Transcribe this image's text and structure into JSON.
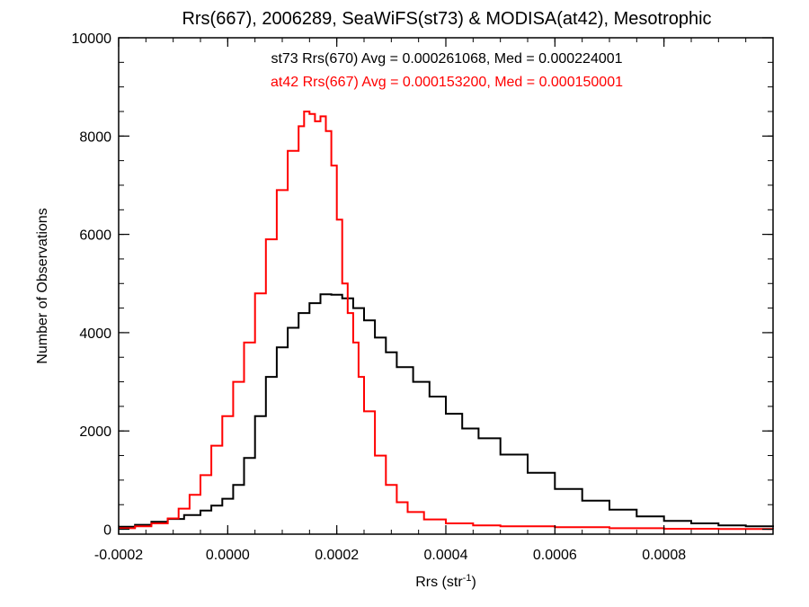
{
  "chart_data": {
    "type": "line",
    "step": true,
    "title": "Rrs(667), 2006289, SeaWiFS(st73) & MODISA(at42), Mesotrophic",
    "xlabel": {
      "base": "Rrs (str",
      "sup": "-1",
      "end": ")"
    },
    "ylabel": "Number of Observations",
    "xlim": [
      -0.0002,
      0.001
    ],
    "ylim": [
      -100,
      10000
    ],
    "xticks": [
      -0.0002,
      0.0,
      0.0002,
      0.0004,
      0.0006,
      0.0008
    ],
    "xtick_labels": [
      "-0.0002",
      "0.0000",
      "0.0002",
      "0.0004",
      "0.0006",
      "0.0008"
    ],
    "yticks": [
      0,
      2000,
      4000,
      6000,
      8000,
      10000
    ],
    "ytick_labels": [
      "0",
      "2000",
      "4000",
      "6000",
      "8000",
      "10000"
    ],
    "annotations": [
      {
        "text": "st73 Rrs(670) Avg = 0.000261068, Med = 0.000224001",
        "color": "#000000"
      },
      {
        "text": "at42 Rrs(667) Avg = 0.000153200, Med = 0.000150001",
        "color": "#ff0000"
      }
    ],
    "series": [
      {
        "color": "#000000",
        "x": [
          -0.0002,
          -0.00017,
          -0.00014,
          -0.00011,
          -8e-05,
          -5e-05,
          -3e-05,
          -1e-05,
          1e-05,
          3e-05,
          5e-05,
          7e-05,
          9e-05,
          0.00011,
          0.00013,
          0.00015,
          0.00017,
          0.00019,
          0.00021,
          0.00023,
          0.00025,
          0.00027,
          0.00029,
          0.00031,
          0.00034,
          0.00037,
          0.0004,
          0.00043,
          0.00046,
          0.0005,
          0.00055,
          0.0006,
          0.00065,
          0.0007,
          0.00075,
          0.0008,
          0.00085,
          0.0009,
          0.00095,
          0.001
        ],
        "y": [
          50,
          90,
          150,
          210,
          290,
          380,
          480,
          620,
          900,
          1450,
          2300,
          3100,
          3700,
          4100,
          4400,
          4600,
          4780,
          4770,
          4700,
          4500,
          4250,
          3900,
          3600,
          3300,
          3000,
          2700,
          2350,
          2050,
          1850,
          1520,
          1150,
          820,
          580,
          400,
          260,
          170,
          120,
          80,
          60,
          40
        ]
      },
      {
        "color": "#ff0000",
        "x": [
          -0.0002,
          -0.00017,
          -0.00014,
          -0.00011,
          -9e-05,
          -7e-05,
          -5e-05,
          -3e-05,
          -1e-05,
          1e-05,
          3e-05,
          5e-05,
          7e-05,
          9e-05,
          0.00011,
          0.00013,
          0.00014,
          0.00015,
          0.00016,
          0.00017,
          0.00018,
          0.00019,
          0.0002,
          0.00021,
          0.00022,
          0.00023,
          0.00024,
          0.00025,
          0.00027,
          0.00029,
          0.00031,
          0.00033,
          0.00036,
          0.0004,
          0.00045,
          0.0005,
          0.0006,
          0.0007,
          0.0008,
          0.0009,
          0.001
        ],
        "y": [
          20,
          60,
          120,
          220,
          420,
          700,
          1100,
          1700,
          2300,
          3000,
          3800,
          4800,
          5900,
          6900,
          7700,
          8200,
          8500,
          8450,
          8300,
          8400,
          8100,
          7400,
          6300,
          5000,
          4400,
          3800,
          3100,
          2400,
          1500,
          900,
          550,
          350,
          200,
          120,
          80,
          60,
          40,
          20,
          10,
          5,
          0
        ]
      }
    ]
  }
}
